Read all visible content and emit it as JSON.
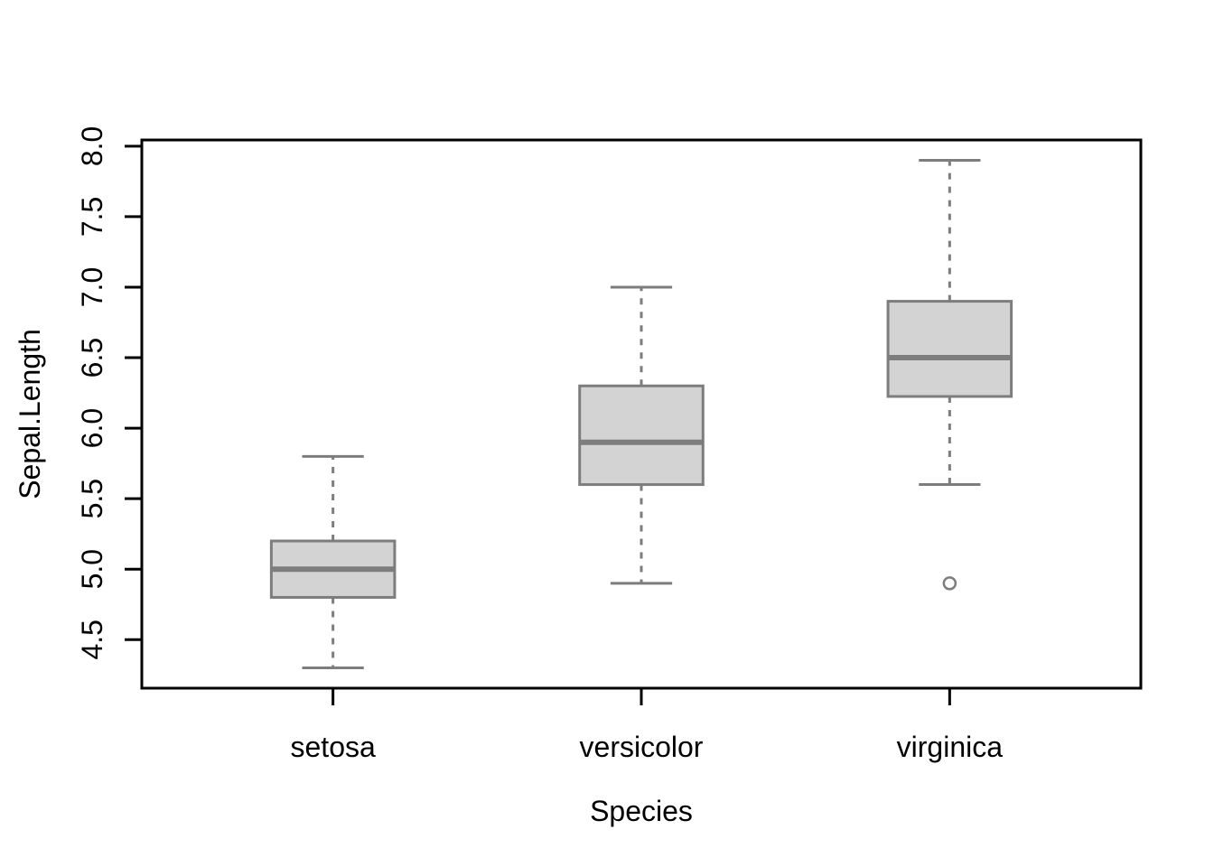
{
  "figure": {
    "background": "#ffffff"
  },
  "chart_data": {
    "type": "boxplot",
    "title": "",
    "xlabel": "Species",
    "ylabel": "Sepal.Length",
    "categories": [
      "setosa",
      "versicolor",
      "virginica"
    ],
    "series": [
      {
        "name": "setosa",
        "whisker_low": 4.3,
        "q1": 4.8,
        "median": 5.0,
        "q3": 5.2,
        "whisker_high": 5.8,
        "outliers": []
      },
      {
        "name": "versicolor",
        "whisker_low": 4.9,
        "q1": 5.6,
        "median": 5.9,
        "q3": 6.3,
        "whisker_high": 7.0,
        "outliers": []
      },
      {
        "name": "virginica",
        "whisker_low": 5.6,
        "q1": 6.225,
        "median": 6.5,
        "q3": 6.9,
        "whisker_high": 7.9,
        "outliers": [
          4.9
        ]
      }
    ],
    "y_ticks": [
      4.5,
      5.0,
      5.5,
      6.0,
      6.5,
      7.0,
      7.5,
      8.0
    ],
    "ylim": [
      4.156,
      8.044
    ],
    "grid": false,
    "legend": null,
    "styles": {
      "box_fill": "#d3d3d3",
      "box_border": "#7d7d7d",
      "median_color": "#7d7d7d",
      "whisker_color": "#7d7d7d",
      "outlier_color": "#7d7d7d",
      "axis_color": "#000000",
      "text_color": "#000000",
      "background": "#ffffff"
    }
  }
}
